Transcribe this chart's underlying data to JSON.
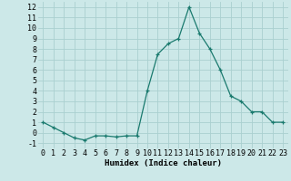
{
  "x": [
    0,
    1,
    2,
    3,
    4,
    5,
    6,
    7,
    8,
    9,
    10,
    11,
    12,
    13,
    14,
    15,
    16,
    17,
    18,
    19,
    20,
    21,
    22,
    23
  ],
  "y": [
    1,
    0.5,
    0,
    -0.5,
    -0.7,
    -0.3,
    -0.3,
    -0.4,
    -0.3,
    -0.3,
    4,
    7.5,
    8.5,
    9,
    12,
    9.5,
    8,
    6,
    3.5,
    3,
    2,
    2,
    1,
    1
  ],
  "line_color": "#1a7a6e",
  "marker": "+",
  "marker_size": 3,
  "bg_color": "#cce8e8",
  "grid_color": "#aad0d0",
  "xlabel": "Humidex (Indice chaleur)",
  "xlabel_fontsize": 6.5,
  "tick_fontsize": 6,
  "xlim": [
    -0.5,
    23.5
  ],
  "ylim": [
    -1.5,
    12.5
  ],
  "yticks": [
    -1,
    0,
    1,
    2,
    3,
    4,
    5,
    6,
    7,
    8,
    9,
    10,
    11,
    12
  ],
  "xticks": [
    0,
    1,
    2,
    3,
    4,
    5,
    6,
    7,
    8,
    9,
    10,
    11,
    12,
    13,
    14,
    15,
    16,
    17,
    18,
    19,
    20,
    21,
    22,
    23
  ]
}
